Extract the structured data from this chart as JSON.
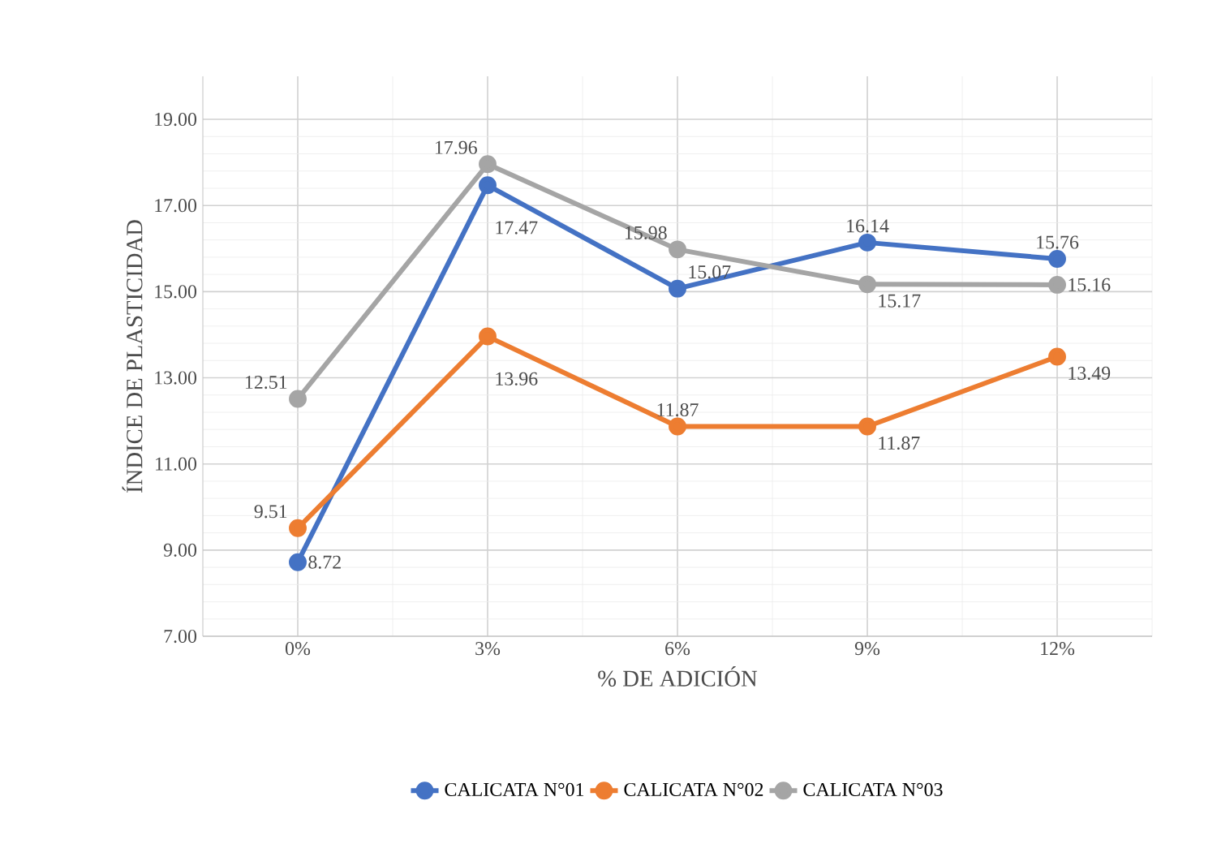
{
  "chart_data": {
    "type": "line",
    "xlabel": "% DE ADICIÓN",
    "ylabel": "ÍNDICE DE PLASTICIDAD",
    "categories": [
      "0%",
      "3%",
      "6%",
      "9%",
      "12%"
    ],
    "series": [
      {
        "name": "CALICATA N°01",
        "color": "#4472c4",
        "values": [
          8.72,
          17.47,
          15.07,
          16.14,
          15.76
        ]
      },
      {
        "name": "CALICATA N°02",
        "color": "#ed7d31",
        "values": [
          9.51,
          13.96,
          11.87,
          11.87,
          13.49
        ]
      },
      {
        "name": "CALICATA N°03",
        "color": "#a5a5a5",
        "values": [
          12.51,
          17.96,
          15.98,
          15.17,
          15.16
        ]
      }
    ],
    "ylim": [
      7,
      20
    ],
    "yticks": [
      {
        "value": 7,
        "label": "7.00"
      },
      {
        "value": 9,
        "label": "9.00"
      },
      {
        "value": 11,
        "label": "11.00"
      },
      {
        "value": 13,
        "label": "13.00"
      },
      {
        "value": 15,
        "label": "15.00"
      },
      {
        "value": 17,
        "label": "17.00"
      },
      {
        "value": 19,
        "label": "19.00"
      }
    ],
    "data_labels": true,
    "grid": true,
    "legend": "bottom",
    "marker": "circle",
    "line_style": "solid"
  }
}
